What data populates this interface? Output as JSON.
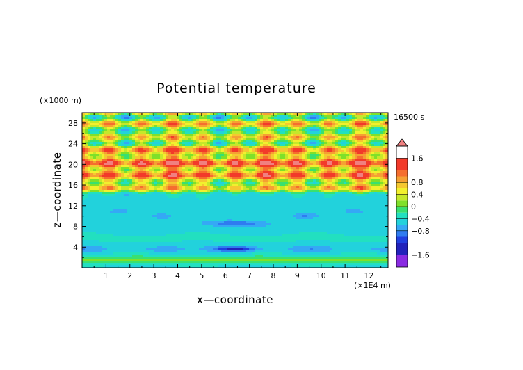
{
  "chart_data": {
    "type": "heatmap",
    "title": "Potential temperature",
    "xlabel": "x—coordinate",
    "ylabel": "z—coordinate",
    "x_unit": "(×1E4 m)",
    "y_unit": "(×1000 m)",
    "time_label": "16500 s",
    "x_ticks": [
      "1",
      "2",
      "3",
      "4",
      "5",
      "6",
      "7",
      "8",
      "9",
      "10",
      "11",
      "12"
    ],
    "y_ticks": [
      "4",
      "8",
      "12",
      "16",
      "20",
      "24",
      "28"
    ],
    "xlim": [
      0,
      12.8
    ],
    "ylim": [
      0,
      30
    ],
    "colorbar_labels": [
      "1.6",
      "0.8",
      "0.4",
      "0",
      "−0.4",
      "−0.8",
      "−1.6"
    ],
    "colorbar_levels": [
      -2.0,
      -1.6,
      -1.2,
      -1.0,
      -0.8,
      -0.6,
      -0.4,
      -0.2,
      0,
      0.2,
      0.4,
      0.6,
      0.8,
      1.0,
      1.2,
      1.6,
      2.0
    ],
    "colorbar_colors": [
      "#8a2be2",
      "#2222bb",
      "#2040e0",
      "#2f7cf0",
      "#35a8f5",
      "#22d2dc",
      "#22e0c0",
      "#39e070",
      "#7fe02a",
      "#c5e82a",
      "#f2f02e",
      "#f5c830",
      "#f5a033",
      "#f56e2e",
      "#f23a2a",
      "#f08080"
    ]
  }
}
